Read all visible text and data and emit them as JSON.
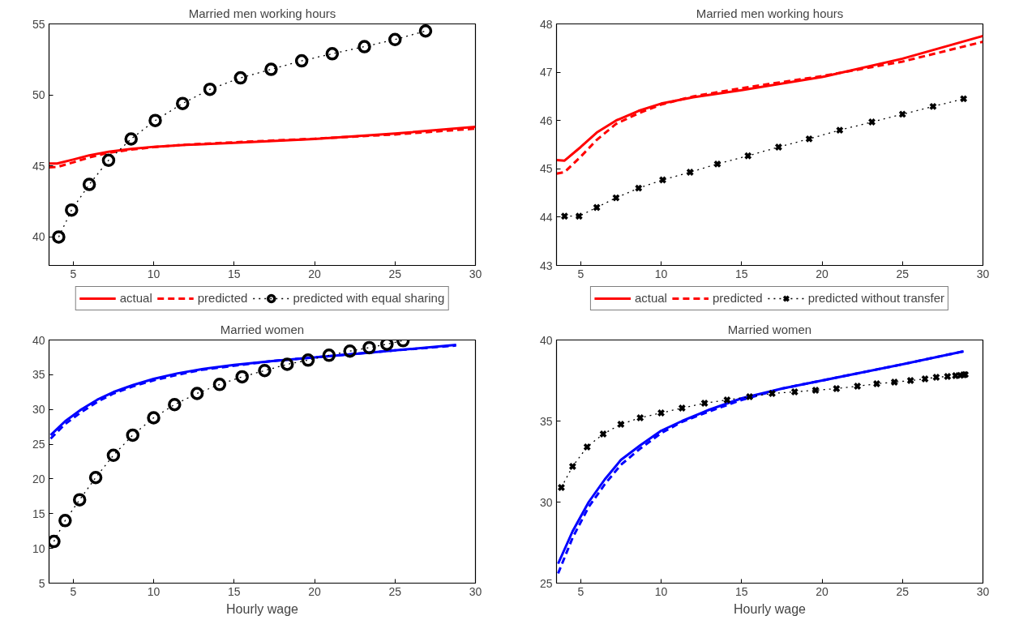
{
  "chart_data": [
    {
      "type": "line",
      "title": "Married men working hours",
      "xlim": [
        3.5,
        30
      ],
      "ylim": [
        38,
        55
      ],
      "xticks": [
        5,
        10,
        15,
        20,
        25,
        30
      ],
      "yticks": [
        40,
        45,
        50,
        55
      ],
      "grid": false,
      "legend": "bottom",
      "series": [
        {
          "name": "actual",
          "color": "#ff0000",
          "line_style": "solid",
          "marker": "none",
          "x": [
            3.5,
            4,
            5,
            6,
            7.2,
            8.6,
            10,
            12,
            15,
            20,
            25,
            30
          ],
          "values": [
            45.18,
            45.17,
            45.45,
            45.75,
            46.0,
            46.2,
            46.35,
            46.48,
            46.63,
            46.9,
            47.28,
            47.75
          ]
        },
        {
          "name": "predicted",
          "color": "#ff0000",
          "line_style": "dashed",
          "marker": "none",
          "x": [
            3.5,
            4,
            5,
            6,
            7.2,
            8.6,
            10,
            12,
            15,
            20,
            25,
            30
          ],
          "values": [
            44.9,
            44.93,
            45.25,
            45.6,
            45.93,
            46.15,
            46.33,
            46.5,
            46.67,
            46.92,
            47.22,
            47.63
          ]
        },
        {
          "name": "predicted with equal sharing",
          "color": "#000000",
          "line_style": "dotted",
          "marker": "circle",
          "x": [
            4.1,
            4.9,
            6.0,
            7.2,
            8.6,
            10.1,
            11.8,
            13.5,
            15.4,
            17.3,
            19.2,
            21.1,
            23.1,
            25.0,
            26.9
          ],
          "values": [
            40.0,
            41.9,
            43.7,
            45.4,
            46.9,
            48.2,
            49.4,
            50.4,
            51.2,
            51.8,
            52.4,
            52.9,
            53.4,
            53.9,
            54.5
          ]
        }
      ]
    },
    {
      "type": "line",
      "title": "Married men working hours",
      "xlim": [
        3.5,
        30
      ],
      "ylim": [
        43,
        48
      ],
      "xticks": [
        5,
        10,
        15,
        20,
        25,
        30
      ],
      "yticks": [
        43,
        44,
        45,
        46,
        47,
        48
      ],
      "grid": false,
      "legend": "bottom",
      "series": [
        {
          "name": "actual",
          "color": "#ff0000",
          "line_style": "solid",
          "marker": "none",
          "x": [
            3.5,
            4,
            5,
            6,
            7.2,
            8.6,
            10,
            12,
            15,
            20,
            25,
            30
          ],
          "values": [
            45.18,
            45.17,
            45.45,
            45.75,
            46.0,
            46.2,
            46.35,
            46.48,
            46.63,
            46.9,
            47.28,
            47.75
          ]
        },
        {
          "name": "predicted",
          "color": "#ff0000",
          "line_style": "dashed",
          "marker": "none",
          "x": [
            3.5,
            4,
            5,
            6,
            7.2,
            8.6,
            10,
            12,
            15,
            20,
            25,
            30
          ],
          "values": [
            44.9,
            44.93,
            45.25,
            45.6,
            45.93,
            46.15,
            46.33,
            46.5,
            46.67,
            46.92,
            47.22,
            47.63
          ]
        },
        {
          "name": "predicted without transfer",
          "color": "#000000",
          "line_style": "dotted",
          "marker": "cross",
          "x": [
            4.0,
            4.9,
            6.0,
            7.2,
            8.6,
            10.1,
            11.8,
            13.5,
            15.4,
            17.3,
            19.2,
            21.1,
            23.1,
            25.0,
            26.9,
            28.8
          ],
          "values": [
            44.02,
            44.02,
            44.2,
            44.4,
            44.6,
            44.77,
            44.93,
            45.1,
            45.27,
            45.45,
            45.62,
            45.8,
            45.97,
            46.13,
            46.29,
            46.45
          ]
        }
      ]
    },
    {
      "type": "line",
      "title": "Married women",
      "xlabel": "Hourly wage",
      "xlim": [
        3.5,
        30
      ],
      "ylim": [
        5,
        40
      ],
      "xticks": [
        5,
        10,
        15,
        20,
        25,
        30
      ],
      "yticks": [
        5,
        10,
        15,
        20,
        25,
        30,
        35,
        40
      ],
      "grid": false,
      "series": [
        {
          "color": "#0000ff",
          "line_style": "solid",
          "marker": "none",
          "x": [
            3.6,
            4.5,
            5.5,
            6.5,
            7.5,
            8.7,
            10,
            11.5,
            13,
            15,
            17.5,
            20,
            22.5,
            25,
            28.8
          ],
          "values": [
            26.3,
            28.3,
            30.0,
            31.4,
            32.5,
            33.5,
            34.4,
            35.2,
            35.8,
            36.4,
            37.0,
            37.5,
            38.0,
            38.5,
            39.3
          ]
        },
        {
          "color": "#0000ff",
          "line_style": "dashed",
          "marker": "none",
          "x": [
            3.6,
            4.5,
            5.5,
            6.5,
            7.5,
            8.7,
            10,
            11.5,
            13,
            15,
            17.5,
            20,
            22.5,
            25,
            28.8
          ],
          "values": [
            25.8,
            27.9,
            29.6,
            31.1,
            32.3,
            33.3,
            34.2,
            35.0,
            35.7,
            36.3,
            37.0,
            37.5,
            38.0,
            38.5,
            39.2
          ]
        },
        {
          "color": "#000000",
          "line_style": "dotted",
          "marker": "circle",
          "x": [
            3.8,
            4.5,
            5.4,
            6.4,
            7.5,
            8.7,
            10.0,
            11.3,
            12.7,
            14.1,
            15.5,
            16.9,
            18.3,
            19.6,
            20.9,
            22.2,
            23.4,
            24.5,
            25.5
          ],
          "values": [
            11.0,
            14.0,
            17.0,
            20.2,
            23.4,
            26.3,
            28.8,
            30.7,
            32.3,
            33.6,
            34.7,
            35.6,
            36.5,
            37.1,
            37.8,
            38.4,
            38.9,
            39.4,
            39.9
          ]
        }
      ]
    },
    {
      "type": "line",
      "title": "Married women",
      "xlabel": "Hourly wage",
      "xlim": [
        3.5,
        30
      ],
      "ylim": [
        25,
        40
      ],
      "xticks": [
        5,
        10,
        15,
        20,
        25,
        30
      ],
      "yticks": [
        25,
        30,
        35,
        40
      ],
      "grid": false,
      "series": [
        {
          "color": "#0000ff",
          "line_style": "solid",
          "marker": "none",
          "x": [
            3.6,
            4.5,
            5.5,
            6.5,
            7.5,
            8.7,
            10,
            11.3,
            13,
            15,
            17.5,
            20,
            22.5,
            25,
            28.8
          ],
          "values": [
            26.2,
            28.2,
            30.0,
            31.4,
            32.6,
            33.5,
            34.4,
            35.0,
            35.7,
            36.4,
            37.0,
            37.5,
            38.0,
            38.5,
            39.3
          ]
        },
        {
          "color": "#0000ff",
          "line_style": "dashed",
          "marker": "none",
          "x": [
            3.6,
            4.5,
            5.5,
            6.5,
            7.5,
            8.7,
            10,
            11.3,
            13,
            15,
            17.5,
            20,
            22.5,
            25,
            28.8
          ],
          "values": [
            25.6,
            27.8,
            29.7,
            31.1,
            32.3,
            33.3,
            34.25,
            34.95,
            35.6,
            36.3,
            37.0,
            37.5,
            38.0,
            38.5,
            39.3
          ]
        },
        {
          "color": "#000000",
          "line_style": "dotted",
          "marker": "cross",
          "x": [
            3.8,
            4.5,
            5.4,
            6.4,
            7.5,
            8.7,
            10.0,
            11.3,
            12.7,
            14.1,
            15.5,
            16.9,
            18.3,
            19.6,
            20.9,
            22.2,
            23.4,
            24.5,
            25.5,
            26.4,
            27.1,
            27.8,
            28.3,
            28.6,
            28.8,
            28.9
          ],
          "values": [
            30.9,
            32.2,
            33.4,
            34.2,
            34.8,
            35.2,
            35.5,
            35.8,
            36.1,
            36.3,
            36.5,
            36.7,
            36.8,
            36.9,
            37.0,
            37.15,
            37.3,
            37.4,
            37.5,
            37.6,
            37.7,
            37.75,
            37.8,
            37.82,
            37.85,
            37.87
          ]
        }
      ]
    }
  ]
}
